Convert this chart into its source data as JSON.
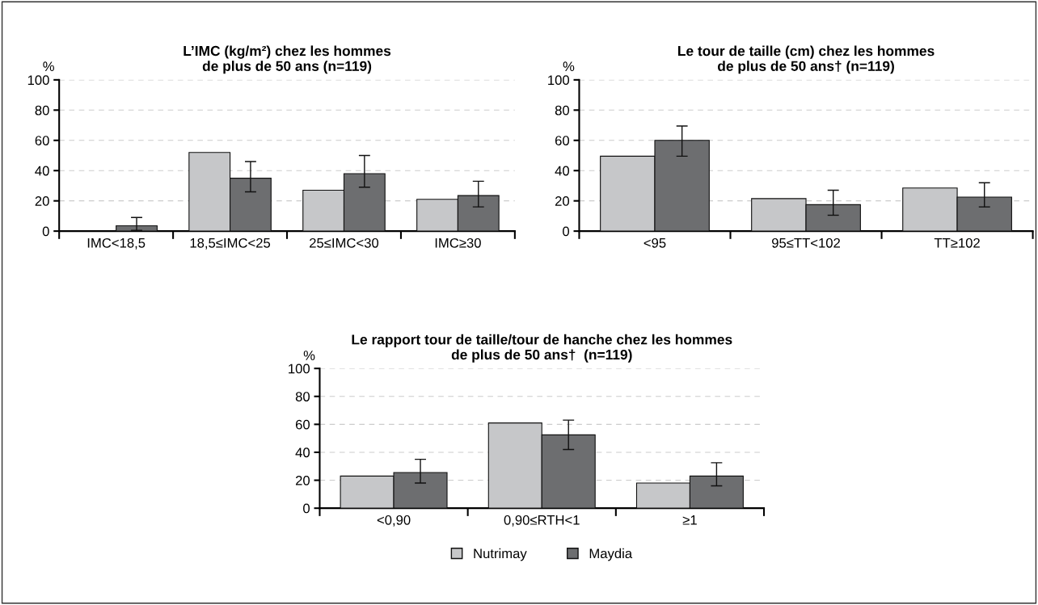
{
  "chart_data": [
    {
      "type": "bar",
      "title": "L’IMC (kg/m²) chez les hommes\nde plus de 50 ans (n=119)",
      "ylabel": "%",
      "categories": [
        "IMC<18,5",
        "18,5≤IMC<25",
        "25≤IMC<30",
        "IMC≥30"
      ],
      "ylim": [
        0,
        100
      ],
      "yticks": [
        0,
        20,
        40,
        60,
        80,
        100
      ],
      "grid": "y",
      "series": [
        {
          "color": "#c6c7c9",
          "values": [
            null,
            52,
            27,
            21
          ]
        },
        {
          "color": "#6d6e70",
          "values": [
            3.5,
            35,
            38,
            23.5
          ],
          "errors": [
            [
              0.5,
              9
            ],
            [
              26,
              46
            ],
            [
              29,
              50
            ],
            [
              16,
              33
            ]
          ]
        }
      ]
    },
    {
      "type": "bar",
      "title": "Le tour de taille (cm) chez les hommes\nde plus de 50 ans† (n=119)",
      "ylabel": "%",
      "categories": [
        "<95",
        "95≤TT<102",
        "TT≥102"
      ],
      "ylim": [
        0,
        100
      ],
      "yticks": [
        0,
        20,
        40,
        60,
        80,
        100
      ],
      "grid": "y",
      "series": [
        {
          "color": "#c6c7c9",
          "values": [
            49.5,
            21.5,
            28.5
          ]
        },
        {
          "color": "#6d6e70",
          "values": [
            60,
            17.5,
            22.5
          ],
          "errors": [
            [
              49.5,
              69.5
            ],
            [
              10.5,
              27
            ],
            [
              16,
              32
            ]
          ]
        }
      ]
    },
    {
      "type": "bar",
      "title": "Le rapport tour de taille/tour de hanche chez les hommes\nde plus de 50 ans†  (n=119)",
      "ylabel": "%",
      "categories": [
        "<0,90",
        "0,90≤RTH<1",
        "≥1"
      ],
      "ylim": [
        0,
        100
      ],
      "yticks": [
        0,
        20,
        40,
        60,
        80,
        100
      ],
      "grid": "y",
      "legend": "bottom",
      "series": [
        {
          "name": "Nutrimay",
          "color": "#c6c7c9",
          "values": [
            23,
            61,
            18
          ]
        },
        {
          "name": "Maydia",
          "color": "#6d6e70",
          "values": [
            25.5,
            52.5,
            23
          ],
          "errors": [
            [
              18,
              35
            ],
            [
              42,
              63
            ],
            [
              16,
              32.5
            ]
          ]
        }
      ]
    }
  ]
}
